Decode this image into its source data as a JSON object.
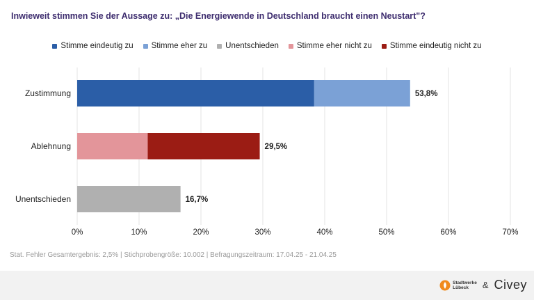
{
  "header": {
    "title": "Inwieweit stimmen Sie der Aussage zu: „Die Energiewende in Deutschland braucht einen Neustart\"?"
  },
  "legend": [
    {
      "label": "Stimme eindeutig zu",
      "color": "#2b5ea7"
    },
    {
      "label": "Stimme eher zu",
      "color": "#7ba1d6"
    },
    {
      "label": "Unentschieden",
      "color": "#b0b0b0"
    },
    {
      "label": "Stimme eher nicht zu",
      "color": "#e3959a"
    },
    {
      "label": "Stimme eindeutig nicht zu",
      "color": "#9b1c14"
    }
  ],
  "chart_data": {
    "type": "bar",
    "orientation": "horizontal",
    "stacked": true,
    "title": "Inwieweit stimmen Sie der Aussage zu: „Die Energiewende in Deutschland braucht einen Neustart\"?",
    "categories": [
      "Zustimmung",
      "Ablehnung",
      "Unentschieden"
    ],
    "series": [
      {
        "name": "Stimme eindeutig zu",
        "color": "#2b5ea7",
        "values": [
          38.3,
          0,
          0
        ]
      },
      {
        "name": "Stimme eher zu",
        "color": "#7ba1d6",
        "values": [
          15.5,
          0,
          0
        ]
      },
      {
        "name": "Unentschieden",
        "color": "#b0b0b0",
        "values": [
          0,
          0,
          16.7
        ]
      },
      {
        "name": "Stimme eher nicht zu",
        "color": "#e3959a",
        "values": [
          0,
          11.4,
          0
        ]
      },
      {
        "name": "Stimme eindeutig nicht zu",
        "color": "#9b1c14",
        "values": [
          0,
          18.1,
          0
        ]
      }
    ],
    "totals": [
      "53,8%",
      "29,5%",
      "16,7%"
    ],
    "xlim": [
      0,
      70
    ],
    "xticks": [
      "0%",
      "10%",
      "20%",
      "30%",
      "40%",
      "50%",
      "60%",
      "70%"
    ],
    "grid": true,
    "legend_position": "top"
  },
  "footnote": "Stat. Fehler Gesamtergebnis: 2,5% | Stichprobengröße: 10.002 | Befragungszeitraum: 17.04.25 - 21.04.25",
  "footer": {
    "logo_text": [
      "Stadtwerke",
      "Lübeck"
    ],
    "ampersand": "&",
    "brand": "Civey",
    "logo_color": "#f08a1c"
  }
}
